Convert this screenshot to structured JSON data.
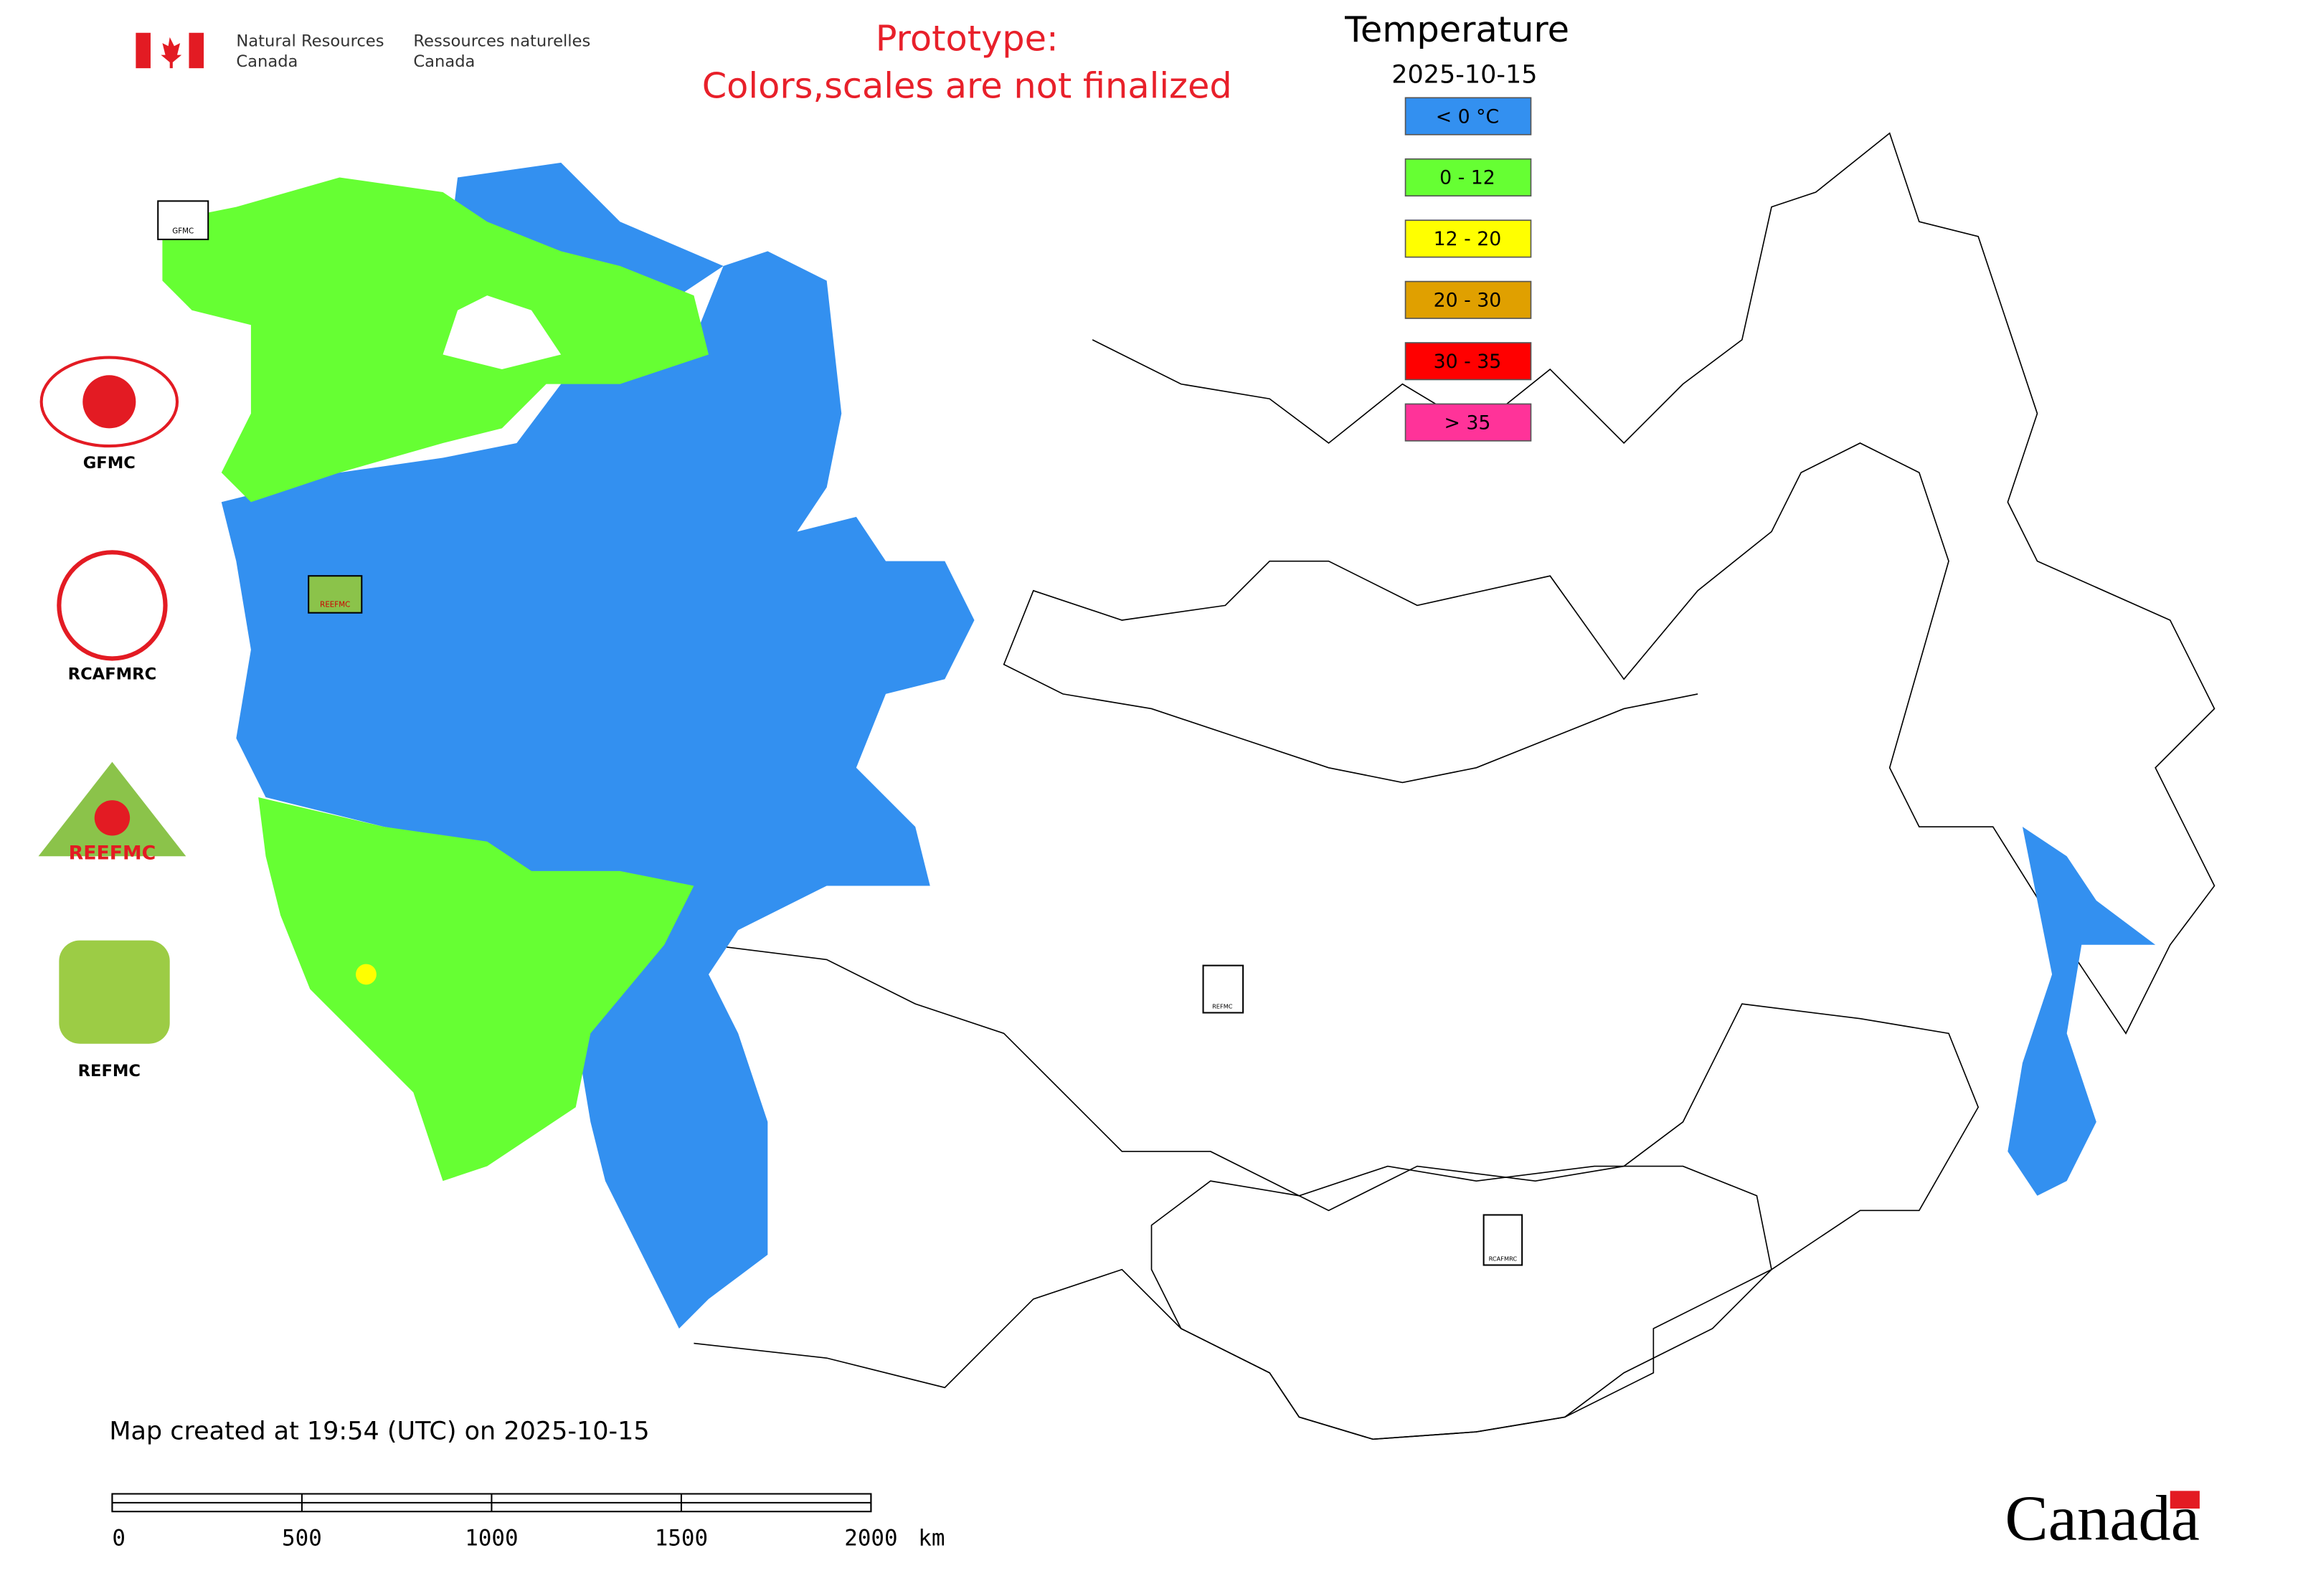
{
  "header": {
    "department_en": [
      "Natural Resources",
      "Canada"
    ],
    "department_fr": [
      "Ressources naturelles",
      "Canada"
    ],
    "notice": [
      "Prototype:",
      "Colors,scales are not finalized"
    ]
  },
  "legend": {
    "title": "Temperature",
    "date": "2025-10-15",
    "items": [
      {
        "label": "< 0 °C",
        "color": "#3390f0"
      },
      {
        "label": "0 - 12",
        "color": "#66ff33"
      },
      {
        "label": "12 - 20",
        "color": "#ffff00"
      },
      {
        "label": "20 - 30",
        "color": "#e0a000"
      },
      {
        "label": "30 - 35",
        "color": "#ff0000"
      },
      {
        "label": "> 35",
        "color": "#ff3399"
      }
    ]
  },
  "logos": [
    "GFMC",
    "RCAFMRC",
    "REEFMC",
    "REFMC"
  ],
  "footer": {
    "created": "Map created at 19:54 (UTC) on 2025-10-15",
    "wordmark": "Canada"
  },
  "scale_bar": {
    "ticks": [
      0,
      500,
      1000,
      1500,
      2000
    ],
    "unit": "km"
  }
}
